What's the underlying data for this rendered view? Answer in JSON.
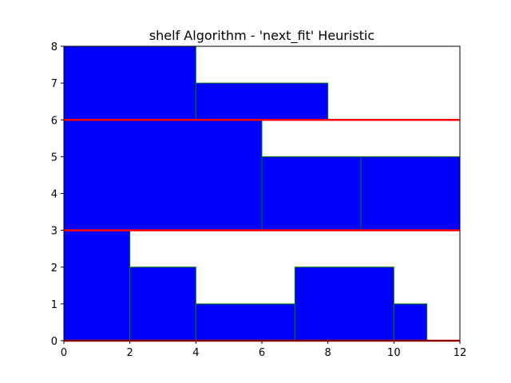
{
  "chart_data": {
    "type": "bar",
    "title": "shelf Algorithm - 'next_fit' Heuristic",
    "xlabel": "",
    "ylabel": "",
    "xlim": [
      0,
      12
    ],
    "ylim": [
      0,
      8
    ],
    "xticks": [
      0,
      2,
      4,
      6,
      8,
      10,
      12
    ],
    "yticks": [
      0,
      1,
      2,
      3,
      4,
      5,
      6,
      7,
      8
    ],
    "grid": false,
    "rect_fill": "#0000ff",
    "rect_edge": "#008000",
    "shelf_color": "#ff0000",
    "shelves": [
      0,
      3,
      6
    ],
    "rectangles": [
      {
        "x": 0,
        "y": 0,
        "w": 2,
        "h": 3
      },
      {
        "x": 2,
        "y": 0,
        "w": 2,
        "h": 2
      },
      {
        "x": 4,
        "y": 0,
        "w": 3,
        "h": 1
      },
      {
        "x": 7,
        "y": 0,
        "w": 3,
        "h": 2
      },
      {
        "x": 10,
        "y": 0,
        "w": 1,
        "h": 1
      },
      {
        "x": 0,
        "y": 3,
        "w": 6,
        "h": 3
      },
      {
        "x": 6,
        "y": 3,
        "w": 3,
        "h": 2
      },
      {
        "x": 9,
        "y": 3,
        "w": 3,
        "h": 2
      },
      {
        "x": 0,
        "y": 6,
        "w": 4,
        "h": 2
      },
      {
        "x": 4,
        "y": 6,
        "w": 4,
        "h": 1
      }
    ]
  }
}
